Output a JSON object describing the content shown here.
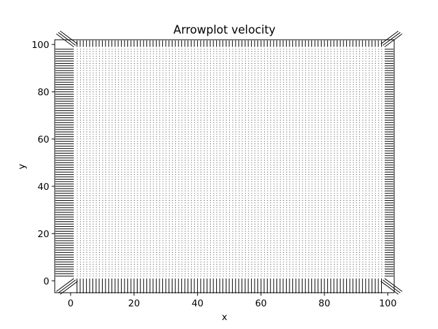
{
  "chart_data": {
    "type": "quiver",
    "title": "Arrowplot velocity",
    "xlabel": "x",
    "ylabel": "y",
    "xlim": [
      -5,
      102
    ],
    "ylim": [
      -5,
      102
    ],
    "xticks": [
      0,
      20,
      40,
      60,
      80,
      100
    ],
    "yticks": [
      0,
      20,
      40,
      60,
      80,
      100
    ],
    "grid": false,
    "legend": "none",
    "field": {
      "x_range": [
        0,
        100
      ],
      "y_range": [
        0,
        100
      ],
      "x_step": 1,
      "y_step": 1,
      "interior_magnitude": 0,
      "boundary_flow": "outward",
      "interior_glyph": "dot",
      "color": "#000000"
    }
  }
}
